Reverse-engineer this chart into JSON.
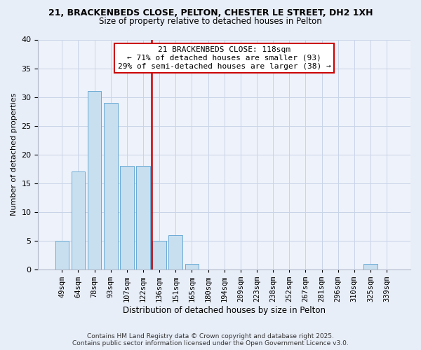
{
  "title1": "21, BRACKENBEDS CLOSE, PELTON, CHESTER LE STREET, DH2 1XH",
  "title2": "Size of property relative to detached houses in Pelton",
  "xlabel": "Distribution of detached houses by size in Pelton",
  "ylabel": "Number of detached properties",
  "bar_labels": [
    "49sqm",
    "64sqm",
    "78sqm",
    "93sqm",
    "107sqm",
    "122sqm",
    "136sqm",
    "151sqm",
    "165sqm",
    "180sqm",
    "194sqm",
    "209sqm",
    "223sqm",
    "238sqm",
    "252sqm",
    "267sqm",
    "281sqm",
    "296sqm",
    "310sqm",
    "325sqm",
    "339sqm"
  ],
  "bar_values": [
    5,
    17,
    31,
    29,
    18,
    18,
    5,
    6,
    1,
    0,
    0,
    0,
    0,
    0,
    0,
    0,
    0,
    0,
    0,
    1,
    0
  ],
  "bar_color": "#c8dff0",
  "bar_edge_color": "#6aaad4",
  "vline_x": 5.5,
  "vline_color": "#cc0000",
  "annotation_line1": "21 BRACKENBEDS CLOSE: 118sqm",
  "annotation_line2": "← 71% of detached houses are smaller (93)",
  "annotation_line3": "29% of semi-detached houses are larger (38) →",
  "annotation_box_color": "#ffffff",
  "annotation_box_edge": "#cc0000",
  "ylim": [
    0,
    40
  ],
  "yticks": [
    0,
    5,
    10,
    15,
    20,
    25,
    30,
    35,
    40
  ],
  "footer1": "Contains HM Land Registry data © Crown copyright and database right 2025.",
  "footer2": "Contains public sector information licensed under the Open Government Licence v3.0.",
  "bg_color": "#e8eef8",
  "plot_bg_color": "#eef2fa",
  "grid_color": "#c8d4e8",
  "title1_fontsize": 9.0,
  "title2_fontsize": 8.5,
  "xlabel_fontsize": 8.5,
  "ylabel_fontsize": 8.0,
  "tick_fontsize": 7.5,
  "annot_fontsize": 8.0,
  "footer_fontsize": 6.5
}
